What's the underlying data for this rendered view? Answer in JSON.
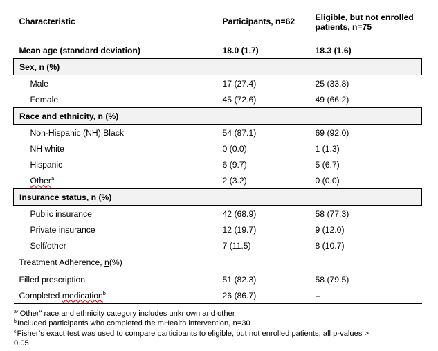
{
  "table": {
    "headers": {
      "characteristic": "Characteristic",
      "participants": "Participants, n=62",
      "eligible": "Eligible, but not enrolled patients, n=75"
    },
    "mean_age": {
      "label": "Mean age (standard deviation)",
      "participants": "18.0 (1.7)",
      "eligible": "18.3 (1.6)"
    },
    "sex": {
      "label": "Sex, n (%)",
      "rows": [
        {
          "label": "Male",
          "participants": "17 (27.4)",
          "eligible": "25 (33.8)"
        },
        {
          "label": "Female",
          "participants": "45 (72.6)",
          "eligible": "49 (66.2)"
        }
      ]
    },
    "race": {
      "label": "Race and ethnicity, n (%)",
      "rows": [
        {
          "label": "Non-Hispanic (NH) Black",
          "participants": "54 (87.1)",
          "eligible": "69 (92.0)"
        },
        {
          "label": "NH white",
          "participants": "0 (0.0)",
          "eligible": "1 (1.3)"
        },
        {
          "label": "Hispanic",
          "participants": "6 (9.7)",
          "eligible": "5 (6.7)"
        },
        {
          "label": "Other",
          "marker": "a",
          "participants": "2 (3.2)",
          "eligible": "0 (0.0)"
        }
      ]
    },
    "insurance": {
      "label": "Insurance status, n (%)",
      "rows": [
        {
          "label": "Public insurance",
          "participants": "42 (68.9)",
          "eligible": "58 (77.3)"
        },
        {
          "label": "Private insurance",
          "participants": "12 (19.7)",
          "eligible": "9 (12.0)"
        },
        {
          "label": "Self/other",
          "participants": "7 (11.5)",
          "eligible": "8 (10.7)"
        }
      ]
    },
    "adherence": {
      "label_start": "Treatment Adherence, ",
      "label_n": "n",
      "label_end": "(%)",
      "rows": [
        {
          "label": "Filled prescription",
          "participants": "51 (82.3)",
          "eligible": "58 (79.5)"
        },
        {
          "label": "Completed medication",
          "marker": "b",
          "participants": "26 (86.7)",
          "eligible": "--"
        }
      ]
    }
  },
  "footnotes": [
    {
      "marker": "a",
      "text": "“Other” race and ethnicity category includes unknown and other"
    },
    {
      "marker": "b",
      "text": "Included participants who completed the mHealth intervention, n=30"
    },
    {
      "marker": "c",
      "text": "Fisher’s exact test was used to compare participants to eligible, but not enrolled patients; all p-values >"
    },
    {
      "marker": "",
      "text": "0.05"
    }
  ],
  "colors": {
    "shade": "#f2f2f2",
    "rule": "#000000",
    "spellcheck": "#c00000"
  }
}
